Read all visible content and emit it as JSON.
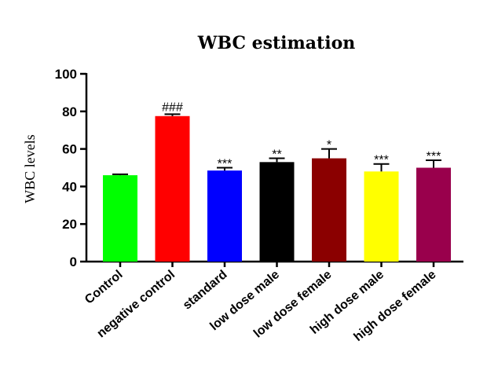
{
  "chart_data": {
    "type": "bar",
    "title": "WBC estimation",
    "ylabel": "WBC levels",
    "xlabel": "",
    "ylim": [
      0,
      100
    ],
    "yticks": [
      0,
      20,
      40,
      60,
      80,
      100
    ],
    "categories": [
      "Control",
      "negative control",
      "standard",
      "low dose male",
      "low dose female",
      "high dose male",
      "high dose female"
    ],
    "values": [
      46,
      77.5,
      48.5,
      53,
      55,
      48,
      50
    ],
    "errors": [
      0.5,
      1,
      1.5,
      2,
      5,
      4,
      4
    ],
    "significance": [
      "",
      "###",
      "***",
      "**",
      "*",
      "***",
      "***"
    ],
    "colors": [
      "#00ff00",
      "#ff0000",
      "#0000ff",
      "#000000",
      "#8b0000",
      "#ffff00",
      "#99004c"
    ],
    "grid": false,
    "legend": "none"
  }
}
